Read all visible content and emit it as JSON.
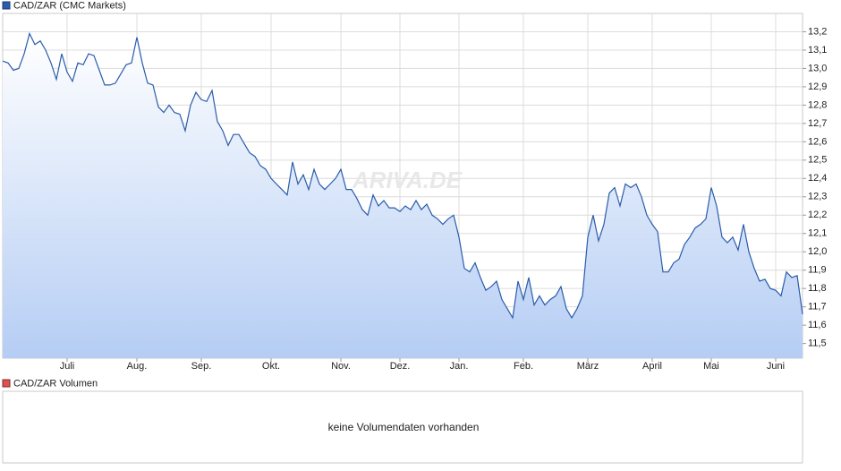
{
  "chart_data": [
    {
      "type": "line",
      "title": "CAD/ZAR (CMC Markets)",
      "watermark": "ARIVA.DE",
      "grid": true,
      "series": [
        {
          "name": "CAD/ZAR (CMC Markets)",
          "color": "#2a5caa",
          "values": [
            13.04,
            13.03,
            12.99,
            13.0,
            13.08,
            13.19,
            13.13,
            13.15,
            13.1,
            13.03,
            12.94,
            13.08,
            12.98,
            12.93,
            13.03,
            13.02,
            13.08,
            13.07,
            12.99,
            12.91,
            12.91,
            12.92,
            12.97,
            13.02,
            13.03,
            13.17,
            13.03,
            12.92,
            12.91,
            12.79,
            12.76,
            12.8,
            12.76,
            12.75,
            12.66,
            12.8,
            12.87,
            12.83,
            12.82,
            12.88,
            12.71,
            12.66,
            12.58,
            12.64,
            12.64,
            12.59,
            12.54,
            12.52,
            12.47,
            12.45,
            12.4,
            12.37,
            12.34,
            12.31,
            12.49,
            12.37,
            12.42,
            12.34,
            12.45,
            12.37,
            12.34,
            12.37,
            12.4,
            12.45,
            12.34,
            12.34,
            12.29,
            12.23,
            12.2,
            12.31,
            12.25,
            12.28,
            12.24,
            12.24,
            12.22,
            12.25,
            12.23,
            12.28,
            12.23,
            12.26,
            12.2,
            12.18,
            12.15,
            12.18,
            12.2,
            12.08,
            11.91,
            11.89,
            11.94,
            11.86,
            11.79,
            11.81,
            11.84,
            11.74,
            11.69,
            11.64,
            11.84,
            11.74,
            11.86,
            11.71,
            11.76,
            11.71,
            11.74,
            11.76,
            11.81,
            11.69,
            11.64,
            11.69,
            11.76,
            12.08,
            12.2,
            12.06,
            12.15,
            12.32,
            12.35,
            12.25,
            12.37,
            12.35,
            12.37,
            12.3,
            12.2,
            12.15,
            12.11,
            11.89,
            11.89,
            11.94,
            11.96,
            12.04,
            12.08,
            12.13,
            12.15,
            12.18,
            12.35,
            12.25,
            12.08,
            12.05,
            12.08,
            12.01,
            12.15,
            12.0,
            11.91,
            11.84,
            11.85,
            11.8,
            11.79,
            11.76,
            11.89,
            11.86,
            11.87,
            11.66
          ]
        }
      ],
      "xlim": [
        0,
        149
      ],
      "xticks": [
        {
          "value": 12,
          "label": "Juli"
        },
        {
          "value": 25,
          "label": "Aug."
        },
        {
          "value": 37,
          "label": "Sep."
        },
        {
          "value": 50,
          "label": "Okt."
        },
        {
          "value": 63,
          "label": "Nov."
        },
        {
          "value": 74,
          "label": "Dez."
        },
        {
          "value": 85,
          "label": "Jan."
        },
        {
          "value": 97,
          "label": "Feb."
        },
        {
          "value": 109,
          "label": "März"
        },
        {
          "value": 121,
          "label": "April"
        },
        {
          "value": 132,
          "label": "Mai"
        },
        {
          "value": 144,
          "label": "Juni"
        }
      ],
      "ylim": [
        11.42,
        13.3
      ],
      "yticks": [
        {
          "value": 11.5,
          "label": "11,5"
        },
        {
          "value": 11.6,
          "label": "11,6"
        },
        {
          "value": 11.7,
          "label": "11,7"
        },
        {
          "value": 11.8,
          "label": "11,8"
        },
        {
          "value": 11.9,
          "label": "11,9"
        },
        {
          "value": 12.0,
          "label": "12,0"
        },
        {
          "value": 12.1,
          "label": "12,1"
        },
        {
          "value": 12.2,
          "label": "12,2"
        },
        {
          "value": 12.3,
          "label": "12,3"
        },
        {
          "value": 12.4,
          "label": "12,4"
        },
        {
          "value": 12.5,
          "label": "12,5"
        },
        {
          "value": 12.6,
          "label": "12,6"
        },
        {
          "value": 12.7,
          "label": "12,7"
        },
        {
          "value": 12.8,
          "label": "12,8"
        },
        {
          "value": 12.9,
          "label": "12,9"
        },
        {
          "value": 13.0,
          "label": "13,0"
        },
        {
          "value": 13.1,
          "label": "13,1"
        },
        {
          "value": 13.2,
          "label": "13,2"
        }
      ]
    },
    {
      "type": "bar",
      "title": "CAD/ZAR Volumen",
      "color": "#d9534f",
      "message": "keine Volumendaten vorhanden"
    }
  ]
}
